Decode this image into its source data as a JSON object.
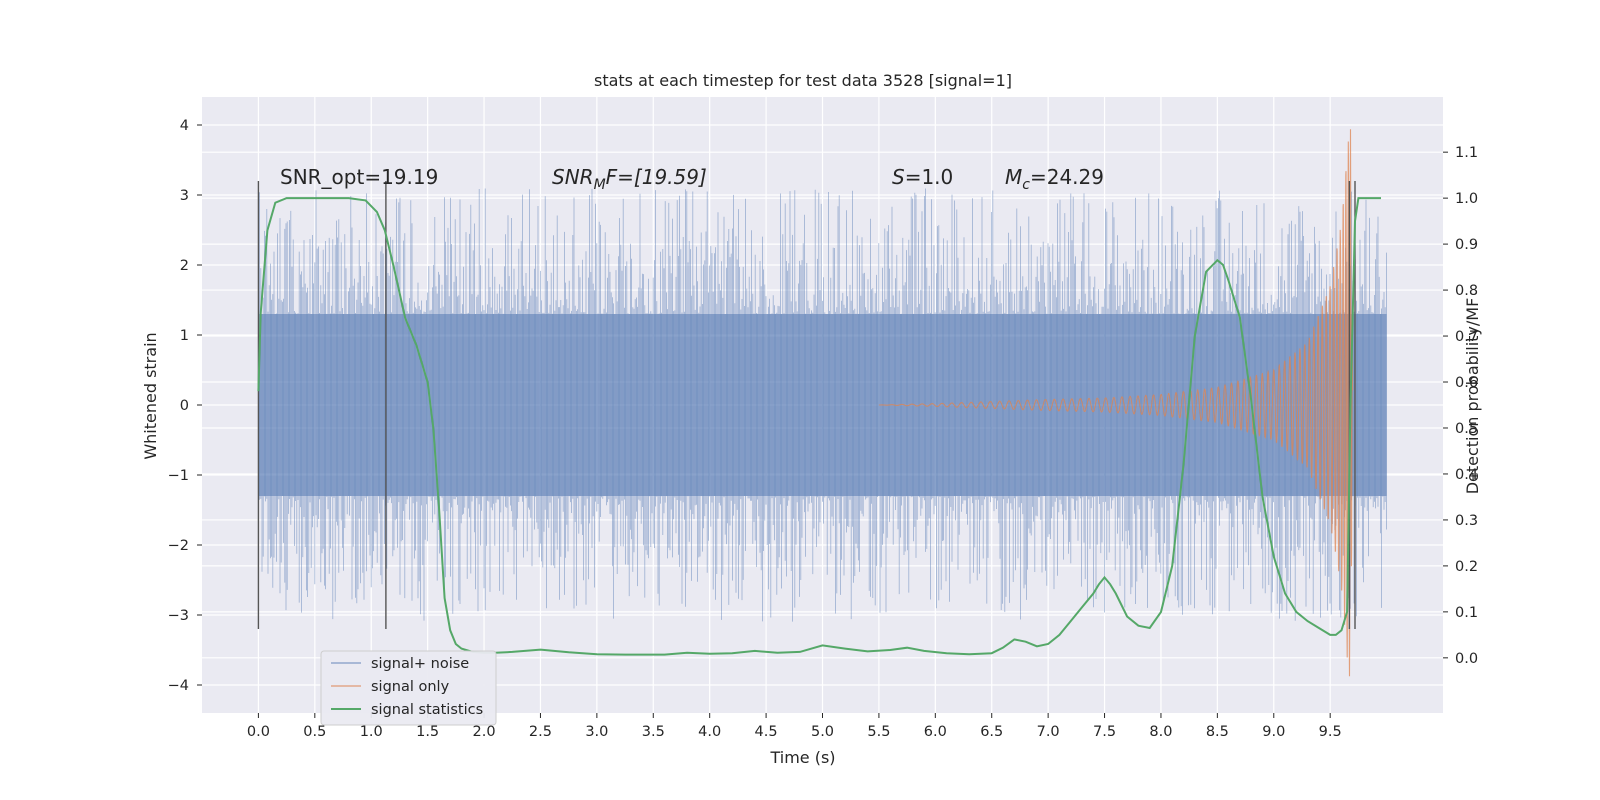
{
  "chart_data": {
    "type": "line",
    "title": "stats at each timestep for test data 3528 [signal=1]",
    "xlabel": "Time (s)",
    "ylabel": "Whitened strain",
    "y2label": "Detection probability/MF",
    "xlim": [
      -0.5,
      10.5
    ],
    "ylim": [
      -4.4,
      4.4
    ],
    "y2lim": [
      -0.12,
      1.22
    ],
    "xticks": [
      0.0,
      0.5,
      1.0,
      1.5,
      2.0,
      2.5,
      3.0,
      3.5,
      4.0,
      4.5,
      5.0,
      5.5,
      6.0,
      6.5,
      7.0,
      7.5,
      8.0,
      8.5,
      9.0,
      9.5
    ],
    "xtick_labels": [
      "0.0",
      "0.5",
      "1.0",
      "1.5",
      "2.0",
      "2.5",
      "3.0",
      "3.5",
      "4.0",
      "4.5",
      "5.0",
      "5.5",
      "6.0",
      "6.5",
      "7.0",
      "7.5",
      "8.0",
      "8.5",
      "9.0",
      "9.5"
    ],
    "yticks": [
      4,
      3,
      2,
      1,
      0,
      -1,
      -2,
      -3,
      -4
    ],
    "ytick_labels": [
      "4",
      "3",
      "2",
      "1",
      "0",
      "−1",
      "−2",
      "−3",
      "−4"
    ],
    "y2ticks": [
      1.1,
      1.0,
      0.9,
      0.8,
      0.7,
      0.6,
      0.5,
      0.4,
      0.3,
      0.2,
      0.1,
      0.0
    ],
    "y2tick_labels": [
      "1.1",
      "1.0",
      "0.9",
      "0.8",
      "0.7",
      "0.6",
      "0.5",
      "0.4",
      "0.3",
      "0.2",
      "0.1",
      "0.0"
    ],
    "grid": true,
    "legend_position": "bottom-left",
    "colors": {
      "noise": "#4c72b0",
      "signal": "#dd8452",
      "stats": "#55a868",
      "vline": "#555555",
      "background": "#eaeaf2",
      "grid": "#ffffff"
    },
    "series": [
      {
        "name": "signal+ noise",
        "axis": "left",
        "x_range": [
          0.0,
          10.0
        ],
        "envelope_abs": 1.3,
        "peak_abs": 3.1
      },
      {
        "name": "signal only",
        "axis": "left",
        "x_range": [
          5.5,
          9.7
        ],
        "envelope": [
          [
            5.5,
            0.0
          ],
          [
            6.0,
            0.02
          ],
          [
            6.5,
            0.05
          ],
          [
            7.0,
            0.08
          ],
          [
            7.5,
            0.1
          ],
          [
            8.0,
            0.15
          ],
          [
            8.5,
            0.25
          ],
          [
            9.0,
            0.5
          ],
          [
            9.3,
            0.9
          ],
          [
            9.5,
            1.7
          ],
          [
            9.6,
            2.6
          ],
          [
            9.65,
            3.6
          ],
          [
            9.68,
            4.05
          ],
          [
            9.7,
            0.0
          ]
        ]
      },
      {
        "name": "signal statistics",
        "axis": "right",
        "x": [
          0.0,
          0.02,
          0.08,
          0.15,
          0.25,
          0.4,
          0.6,
          0.8,
          0.95,
          1.05,
          1.12,
          1.2,
          1.3,
          1.4,
          1.5,
          1.55,
          1.6,
          1.65,
          1.7,
          1.75,
          1.8,
          1.9,
          2.0,
          2.1,
          2.25,
          2.5,
          2.75,
          3.0,
          3.25,
          3.5,
          3.6,
          3.8,
          4.0,
          4.2,
          4.4,
          4.6,
          4.8,
          5.0,
          5.2,
          5.4,
          5.6,
          5.75,
          5.9,
          6.1,
          6.3,
          6.5,
          6.6,
          6.7,
          6.8,
          6.9,
          7.0,
          7.1,
          7.2,
          7.3,
          7.4,
          7.45,
          7.5,
          7.55,
          7.6,
          7.7,
          7.8,
          7.9,
          8.0,
          8.1,
          8.2,
          8.3,
          8.4,
          8.5,
          8.55,
          8.6,
          8.7,
          8.8,
          8.9,
          9.0,
          9.1,
          9.2,
          9.3,
          9.4,
          9.5,
          9.55,
          9.6,
          9.65,
          9.68,
          9.72,
          9.75,
          9.8,
          9.85,
          9.9,
          9.95
        ],
        "y": [
          0.58,
          0.75,
          0.93,
          0.99,
          1.0,
          1.0,
          1.0,
          1.0,
          0.995,
          0.97,
          0.93,
          0.85,
          0.74,
          0.68,
          0.6,
          0.5,
          0.33,
          0.13,
          0.06,
          0.03,
          0.02,
          0.013,
          0.011,
          0.011,
          0.013,
          0.018,
          0.012,
          0.008,
          0.007,
          0.007,
          0.007,
          0.011,
          0.009,
          0.01,
          0.015,
          0.011,
          0.013,
          0.027,
          0.02,
          0.014,
          0.017,
          0.022,
          0.015,
          0.01,
          0.008,
          0.01,
          0.022,
          0.04,
          0.035,
          0.025,
          0.03,
          0.05,
          0.08,
          0.11,
          0.14,
          0.16,
          0.175,
          0.16,
          0.14,
          0.09,
          0.07,
          0.065,
          0.1,
          0.2,
          0.42,
          0.7,
          0.84,
          0.865,
          0.855,
          0.82,
          0.74,
          0.56,
          0.35,
          0.22,
          0.14,
          0.1,
          0.08,
          0.065,
          0.05,
          0.05,
          0.06,
          0.1,
          0.55,
          0.95,
          1.0,
          1.0,
          1.0,
          1.0,
          1.0
        ]
      }
    ],
    "vlines": [
      {
        "x": 0.0,
        "ymin": -3.2,
        "ymax": 3.2
      },
      {
        "x": 1.13,
        "ymin": -3.2,
        "ymax": 3.2
      },
      {
        "x": 9.67,
        "ymin": -3.2,
        "ymax": 3.2
      },
      {
        "x": 9.72,
        "ymin": -3.2,
        "ymax": 3.2
      }
    ],
    "annotations": {
      "snr_opt": "SNR_opt=19.19",
      "snr_mf_prefix": "SNR",
      "snr_mf_sub": "M",
      "snr_mf_suffix": "F=[19.59]",
      "s_prefix": "S",
      "s_value": "=1.0",
      "mc_prefix": "M",
      "mc_sub": "c",
      "mc_value": "=24.29"
    }
  }
}
